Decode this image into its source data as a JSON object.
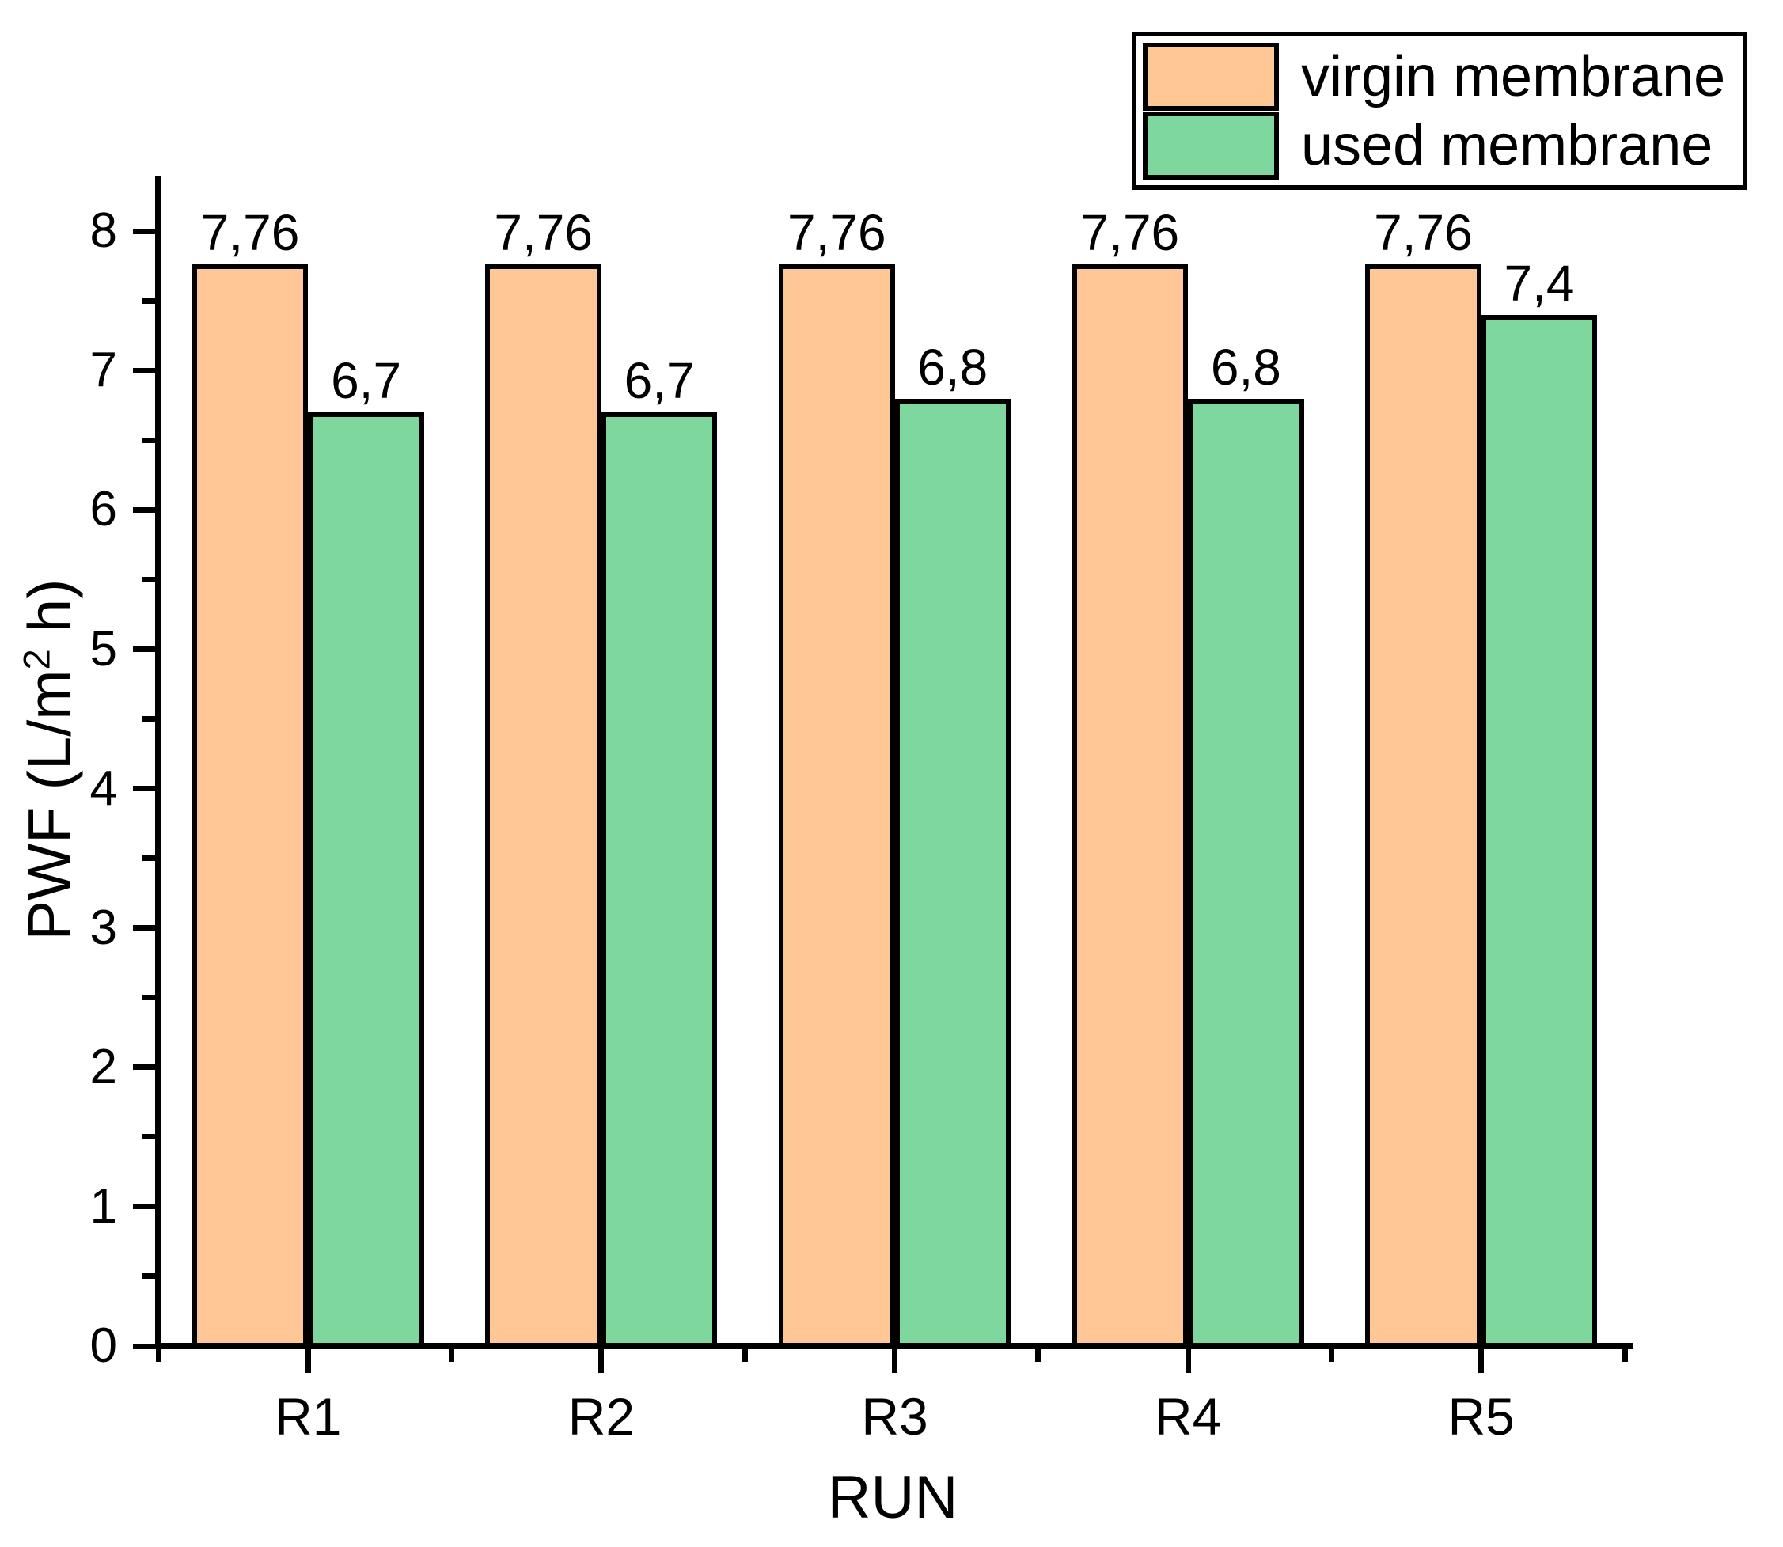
{
  "figure": {
    "background": "#FFFFFF"
  },
  "legend": {
    "position": "top-right",
    "items": [
      {
        "label": "virgin membrane",
        "color": "#FEC795"
      },
      {
        "label": "used membrane",
        "color": "#7ED79C"
      }
    ]
  },
  "chart_data": {
    "type": "bar",
    "categories": [
      "R1",
      "R2",
      "R3",
      "R4",
      "R5"
    ],
    "series": [
      {
        "name": "virgin membrane",
        "color": "#FEC795",
        "values": [
          7.76,
          7.76,
          7.76,
          7.76,
          7.76
        ],
        "labels": [
          "7,76",
          "7,76",
          "7,76",
          "7,76",
          "7,76"
        ]
      },
      {
        "name": "used membrane",
        "color": "#7ED79C",
        "values": [
          6.7,
          6.7,
          6.8,
          6.8,
          7.4
        ],
        "labels": [
          "6,7",
          "6,7",
          "6,8",
          "6,8",
          "7,4"
        ]
      }
    ],
    "title": "",
    "xlabel": "RUN",
    "ylabel": "PWF (L/m² h)",
    "ylabel_prefix": "PWF (L/m",
    "ylabel_sup": "2",
    "ylabel_suffix": " h)",
    "ylim": [
      0,
      8.4
    ],
    "yticks": [
      0,
      1,
      2,
      3,
      4,
      5,
      6,
      7,
      8
    ],
    "ytick_minor_step": 0.5,
    "grid": false,
    "bar_edge_color": "#000000",
    "decimal_separator": ",",
    "legend_position": "top-right"
  }
}
